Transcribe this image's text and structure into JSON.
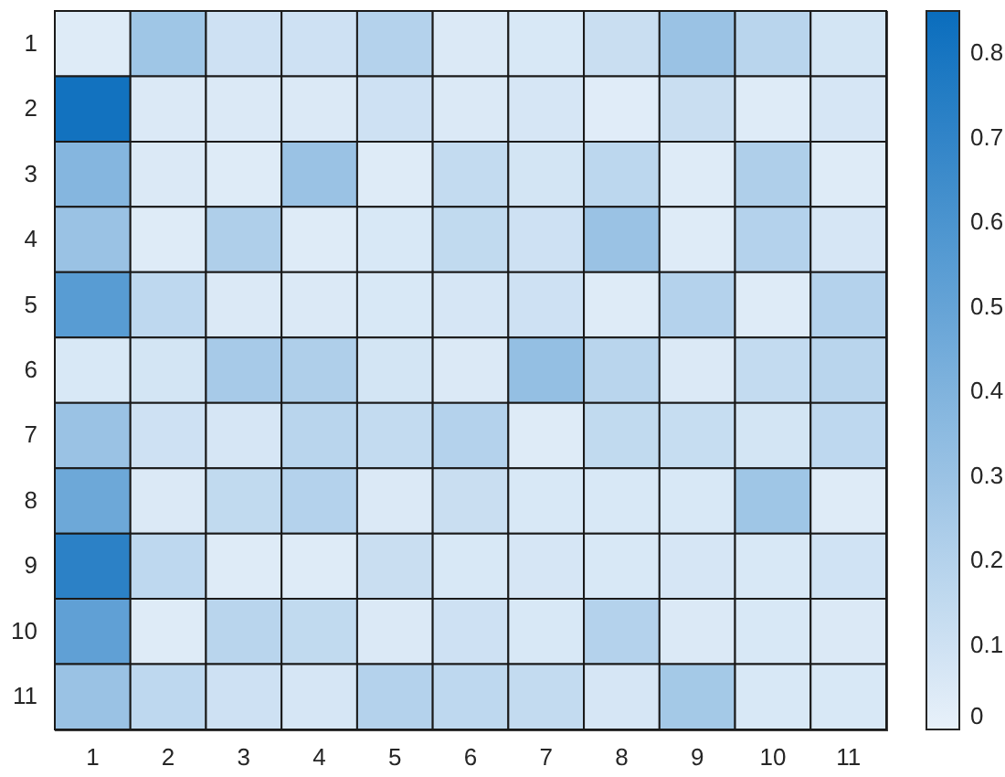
{
  "chart_data": {
    "type": "heatmap",
    "categories": [
      "1",
      "2",
      "3",
      "4",
      "5",
      "6",
      "7",
      "8",
      "9",
      "10",
      "11"
    ],
    "y_categories": [
      "1",
      "2",
      "3",
      "4",
      "5",
      "6",
      "7",
      "8",
      "9",
      "10",
      "11"
    ],
    "cells": [
      [
        0.04,
        0.28,
        0.1,
        0.1,
        0.2,
        0.05,
        0.06,
        0.12,
        0.3,
        0.18,
        0.08
      ],
      [
        0.82,
        0.05,
        0.05,
        0.05,
        0.1,
        0.05,
        0.07,
        0.03,
        0.12,
        0.04,
        0.07
      ],
      [
        0.38,
        0.05,
        0.04,
        0.3,
        0.04,
        0.14,
        0.08,
        0.17,
        0.04,
        0.22,
        0.04
      ],
      [
        0.3,
        0.04,
        0.22,
        0.04,
        0.06,
        0.15,
        0.1,
        0.3,
        0.04,
        0.2,
        0.07
      ],
      [
        0.55,
        0.16,
        0.05,
        0.05,
        0.06,
        0.07,
        0.1,
        0.04,
        0.2,
        0.04,
        0.2
      ],
      [
        0.06,
        0.08,
        0.25,
        0.22,
        0.08,
        0.05,
        0.32,
        0.18,
        0.05,
        0.14,
        0.18
      ],
      [
        0.3,
        0.1,
        0.07,
        0.18,
        0.14,
        0.2,
        0.04,
        0.15,
        0.13,
        0.08,
        0.16
      ],
      [
        0.47,
        0.05,
        0.15,
        0.2,
        0.05,
        0.12,
        0.06,
        0.06,
        0.06,
        0.28,
        0.04
      ],
      [
        0.72,
        0.16,
        0.04,
        0.04,
        0.12,
        0.06,
        0.07,
        0.06,
        0.07,
        0.06,
        0.09
      ],
      [
        0.52,
        0.04,
        0.18,
        0.15,
        0.05,
        0.1,
        0.06,
        0.2,
        0.05,
        0.06,
        0.05
      ],
      [
        0.3,
        0.16,
        0.1,
        0.07,
        0.2,
        0.16,
        0.14,
        0.07,
        0.26,
        0.06,
        0.06
      ]
    ],
    "clim": [
      0,
      0.85
    ],
    "cticks": [
      0,
      0.1,
      0.2,
      0.3,
      0.4,
      0.5,
      0.6,
      0.7,
      0.8
    ]
  }
}
